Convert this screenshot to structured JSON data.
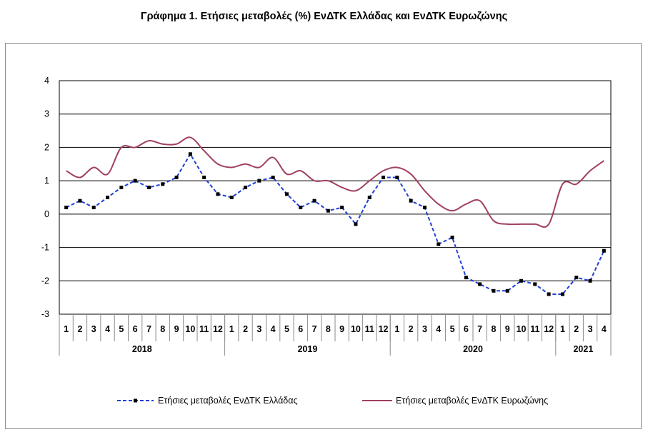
{
  "chart_data": {
    "type": "line",
    "title": "Γράφημα 1. Ετήσιες μεταβολές (%) ΕνΔΤΚ Ελλάδας και ΕνΔΤΚ Ευρωζώνης",
    "xlabel": "",
    "ylabel": "",
    "ylim": [
      -3,
      4
    ],
    "yticks": [
      -3,
      -2,
      -1,
      0,
      1,
      2,
      3,
      4
    ],
    "grid": true,
    "legend_position": "bottom",
    "categories": [
      "1",
      "2",
      "3",
      "4",
      "5",
      "6",
      "7",
      "8",
      "9",
      "10",
      "11",
      "12",
      "1",
      "2",
      "3",
      "4",
      "5",
      "6",
      "7",
      "8",
      "9",
      "10",
      "11",
      "12",
      "1",
      "2",
      "3",
      "4",
      "5",
      "6",
      "7",
      "8",
      "9",
      "10",
      "11",
      "12",
      "1",
      "2",
      "3",
      "4"
    ],
    "year_groups": [
      {
        "label": "2018",
        "span": 12
      },
      {
        "label": "2019",
        "span": 12
      },
      {
        "label": "2020",
        "span": 12
      },
      {
        "label": "2021",
        "span": 4
      }
    ],
    "series": [
      {
        "name": "Ετήσιες μεταβολές ΕνΔΤΚ Ελλάδας",
        "color": "#1f3fd6",
        "style": "dashed-markers",
        "values": [
          0.2,
          0.4,
          0.2,
          0.5,
          0.8,
          1.0,
          0.8,
          0.9,
          1.1,
          1.8,
          1.1,
          0.6,
          0.5,
          0.8,
          1.0,
          1.1,
          0.6,
          0.2,
          0.4,
          0.1,
          0.2,
          -0.3,
          0.5,
          1.1,
          1.1,
          0.4,
          0.2,
          -0.9,
          -0.7,
          -1.9,
          -2.1,
          -2.3,
          -2.3,
          -2.0,
          -2.1,
          -2.4,
          -2.4,
          -1.9,
          -2.0,
          -1.1
        ]
      },
      {
        "name": "Ετήσιες μεταβολές ΕνΔΤΚ Ευρωζώνης",
        "color": "#a04060",
        "style": "solid",
        "values": [
          1.3,
          1.1,
          1.4,
          1.2,
          2.0,
          2.0,
          2.2,
          2.1,
          2.1,
          2.3,
          1.9,
          1.5,
          1.4,
          1.5,
          1.4,
          1.7,
          1.2,
          1.3,
          1.0,
          1.0,
          0.8,
          0.7,
          1.0,
          1.3,
          1.4,
          1.2,
          0.7,
          0.3,
          0.1,
          0.3,
          0.4,
          -0.2,
          -0.3,
          -0.3,
          -0.3,
          -0.3,
          0.9,
          0.9,
          1.3,
          1.6
        ]
      }
    ]
  }
}
